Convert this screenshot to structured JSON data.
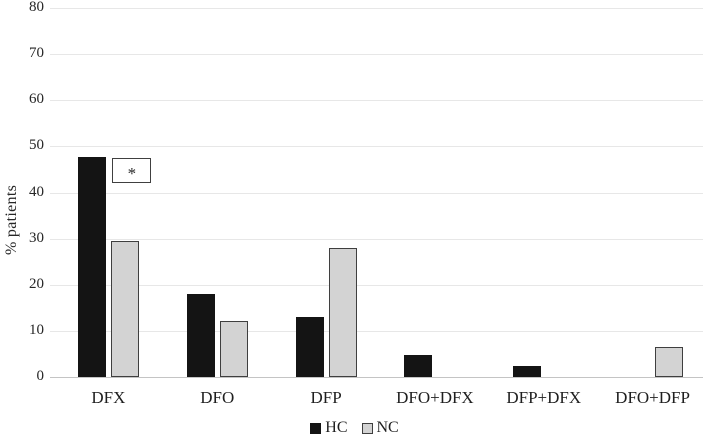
{
  "chart_data": {
    "type": "bar",
    "title": "",
    "xlabel": "",
    "ylabel": "% patients",
    "categories": [
      "DFX",
      "DFO",
      "DFP",
      "DFO+DFX",
      "DFP+DFX",
      "DFO+DFP"
    ],
    "series": [
      {
        "name": "HC",
        "color": "#141414",
        "border_color": "#141414",
        "values": [
          47.6,
          17.9,
          13.1,
          4.8,
          2.4,
          0
        ]
      },
      {
        "name": "NC",
        "color": "#d3d3d3",
        "border_color": "#3f3f3f",
        "values": [
          29.5,
          12.2,
          27.9,
          0,
          0,
          6.6
        ]
      }
    ],
    "ylim": [
      0,
      80
    ],
    "yticks": [
      0,
      10,
      20,
      30,
      40,
      50,
      60,
      70,
      80
    ],
    "grid": "horizontal",
    "gridline_color": "#e7e7e7",
    "axis_line_color": "#c4c4c4",
    "legend_position": "bottom",
    "annotation": {
      "text": "*",
      "category": "DFX",
      "series": "NC",
      "style": "boxed"
    }
  }
}
